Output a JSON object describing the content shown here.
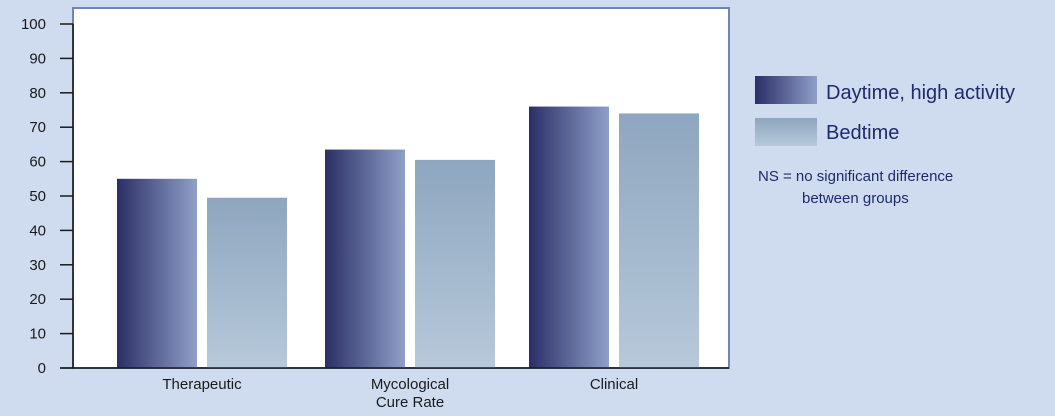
{
  "chart_data": {
    "type": "bar",
    "categories": [
      "Therapeutic",
      "Mycological Cure Rate",
      "Clinical"
    ],
    "category_label_lines": [
      [
        "Therapeutic"
      ],
      [
        "Mycological",
        "Cure Rate"
      ],
      [
        "Clinical"
      ]
    ],
    "series": [
      {
        "name": "Daytime, high activity",
        "values": [
          55,
          63.5,
          76
        ],
        "color_dark": "#2b2f66",
        "color_light": "#8f9fc9"
      },
      {
        "name": "Bedtime",
        "values": [
          49.5,
          60.5,
          74
        ],
        "color_top": "#8ea6bf",
        "color_bottom": "#b7c9da"
      }
    ],
    "ylim": [
      0,
      100
    ],
    "yticks": [
      0,
      10,
      20,
      30,
      40,
      50,
      60,
      70,
      80,
      90,
      100
    ],
    "grid": false,
    "legend_position": "right",
    "title": "",
    "xlabel": "",
    "ylabel": "",
    "note": {
      "line1": "NS = no significant difference",
      "line2": "between groups"
    }
  },
  "colors": {
    "background": "#cfdcef",
    "plot_area": "#ffffff",
    "plot_border": "#6f86b5",
    "axis": "#1a1a1a"
  }
}
